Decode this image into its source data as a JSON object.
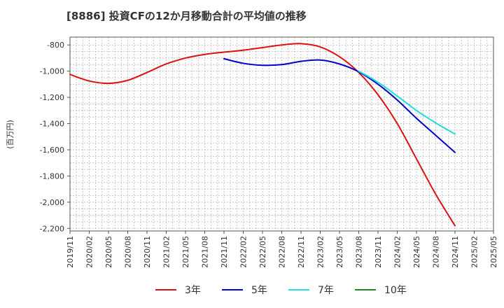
{
  "chart_data": {
    "type": "line",
    "title": "[8886]  投資CFの12か月移動合計の平均値の推移",
    "ylabel": "(百万円)",
    "xlabel": "",
    "ylim": [
      -2220,
      -740
    ],
    "yticks": [
      -800,
      -1000,
      -1200,
      -1400,
      -1600,
      -1800,
      -2000,
      -2200
    ],
    "ytick_labels": [
      "-800",
      "-1,000",
      "-1,200",
      "-1,400",
      "-1,600",
      "-1,800",
      "-2,000",
      "-2,200"
    ],
    "x_tick_labels": [
      "2019/11",
      "2020/02",
      "2020/05",
      "2020/08",
      "2020/11",
      "2021/02",
      "2021/05",
      "2021/08",
      "2021/11",
      "2022/02",
      "2022/05",
      "2022/08",
      "2022/11",
      "2023/02",
      "2023/05",
      "2023/08",
      "2023/11",
      "2024/02",
      "2024/05",
      "2024/08",
      "2024/11",
      "2025/02",
      "2025/05"
    ],
    "grid": true,
    "legend_position": "bottom",
    "series": [
      {
        "name": "3年",
        "color": "#dd1111",
        "points": [
          [
            "2019/11",
            -1025
          ],
          [
            "2020/02",
            -1075
          ],
          [
            "2020/05",
            -1093
          ],
          [
            "2020/08",
            -1070
          ],
          [
            "2020/11",
            -1010
          ],
          [
            "2021/02",
            -945
          ],
          [
            "2021/05",
            -900
          ],
          [
            "2021/08",
            -872
          ],
          [
            "2021/11",
            -855
          ],
          [
            "2022/02",
            -840
          ],
          [
            "2022/05",
            -820
          ],
          [
            "2022/08",
            -800
          ],
          [
            "2022/11",
            -790
          ],
          [
            "2023/02",
            -815
          ],
          [
            "2023/05",
            -890
          ],
          [
            "2023/08",
            -1010
          ],
          [
            "2023/11",
            -1180
          ],
          [
            "2024/02",
            -1400
          ],
          [
            "2024/05",
            -1670
          ],
          [
            "2024/08",
            -1940
          ],
          [
            "2024/11",
            -2180
          ]
        ]
      },
      {
        "name": "5年",
        "color": "#0000cc",
        "points": [
          [
            "2021/11",
            -905
          ],
          [
            "2022/02",
            -940
          ],
          [
            "2022/05",
            -955
          ],
          [
            "2022/08",
            -950
          ],
          [
            "2022/11",
            -925
          ],
          [
            "2023/02",
            -915
          ],
          [
            "2023/05",
            -945
          ],
          [
            "2023/08",
            -1005
          ],
          [
            "2023/11",
            -1100
          ],
          [
            "2024/02",
            -1220
          ],
          [
            "2024/05",
            -1360
          ],
          [
            "2024/08",
            -1490
          ],
          [
            "2024/11",
            -1620
          ]
        ]
      },
      {
        "name": "7年",
        "color": "#22dddd",
        "points": [
          [
            "2023/08",
            -1000
          ],
          [
            "2023/11",
            -1085
          ],
          [
            "2024/02",
            -1190
          ],
          [
            "2024/05",
            -1300
          ],
          [
            "2024/08",
            -1395
          ],
          [
            "2024/11",
            -1480
          ]
        ]
      },
      {
        "name": "10年",
        "color": "#228822",
        "points": []
      }
    ]
  }
}
